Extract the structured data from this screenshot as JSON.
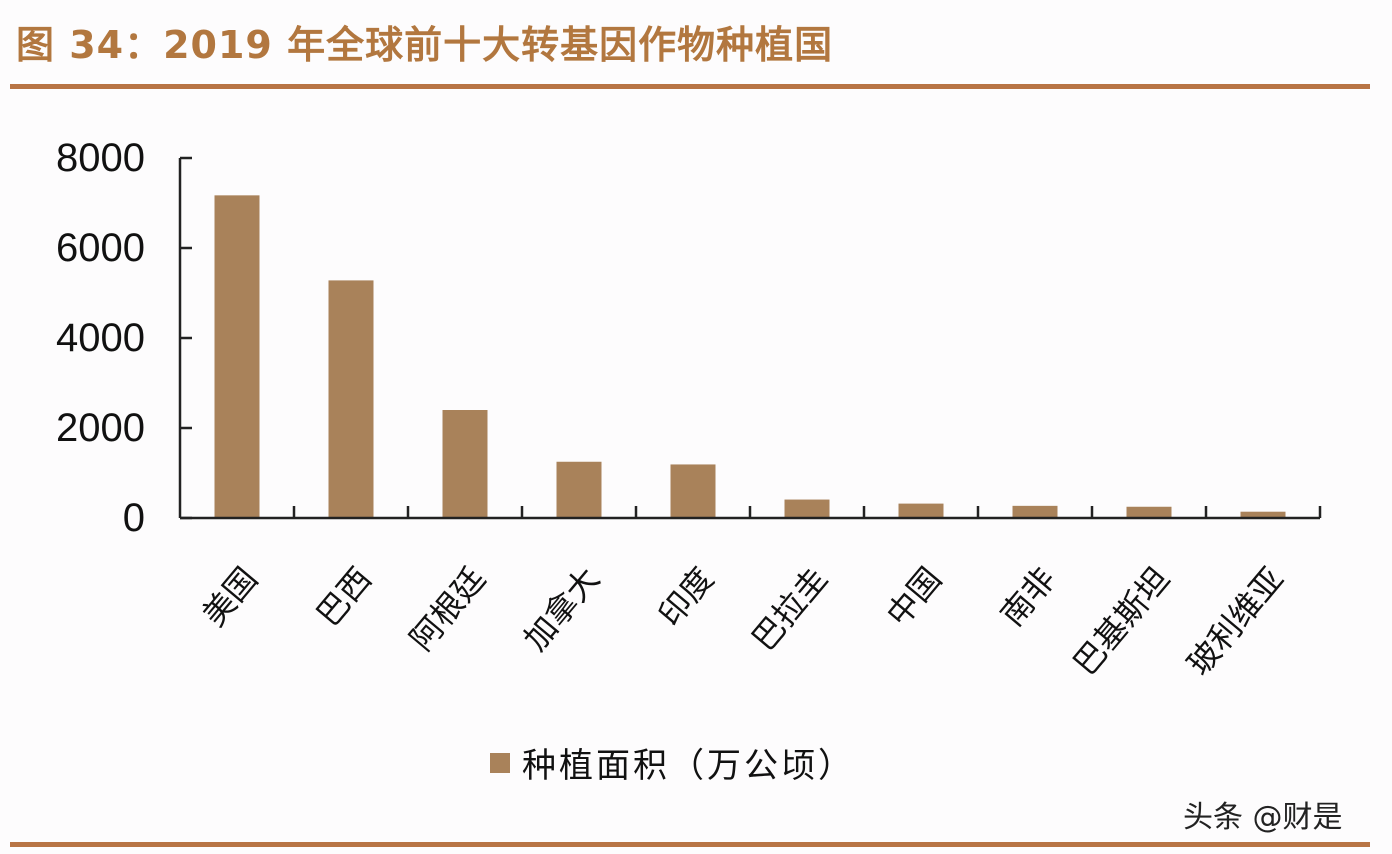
{
  "header": {
    "title": "图 34：2019 年全球前十大转基因作物种植国"
  },
  "colors": {
    "title": "#b2773f",
    "rule": "#b87445",
    "bar": "#a9825a",
    "axis": "#222222"
  },
  "legend": {
    "label": "种植面积（万公顷）"
  },
  "watermark": {
    "text": "头条 @财是"
  },
  "chart_data": {
    "type": "bar",
    "title": "2019 年全球前十大转基因作物种植国",
    "xlabel": "",
    "ylabel": "",
    "categories": [
      "美国",
      "巴西",
      "阿根廷",
      "加拿大",
      "印度",
      "巴拉圭",
      "中国",
      "南非",
      "巴基斯坦",
      "玻利维亚"
    ],
    "series": [
      {
        "name": "种植面积（万公顷）",
        "values": [
          7170,
          5280,
          2400,
          1250,
          1190,
          410,
          320,
          270,
          250,
          140
        ]
      }
    ],
    "yticks": [
      "0",
      "2000",
      "4000",
      "6000",
      "8000"
    ],
    "ylim": [
      0,
      8000
    ],
    "grid": false,
    "legend_position": "bottom"
  }
}
